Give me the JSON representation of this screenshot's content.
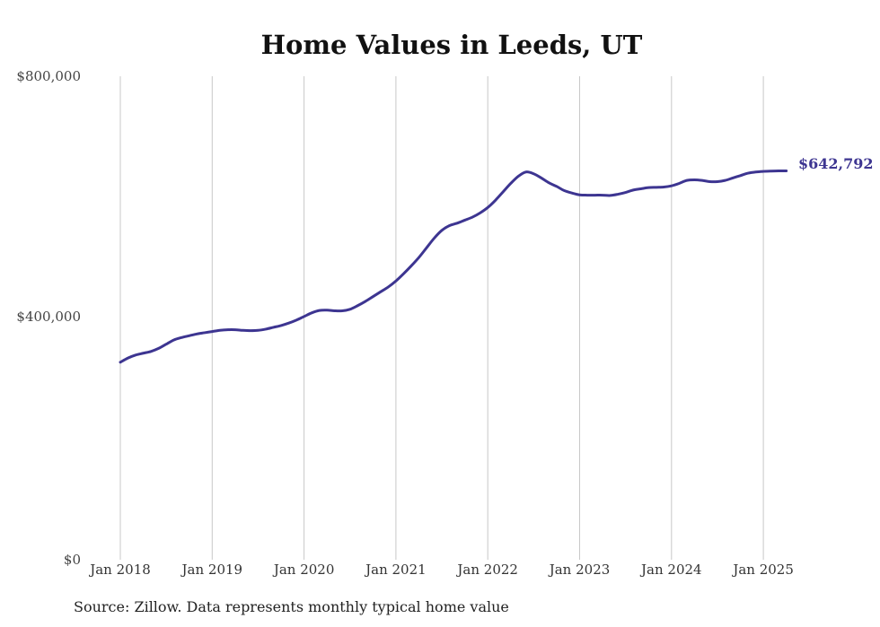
{
  "chart_data": {
    "type": "line",
    "title": "Home Values in Leeds, UT",
    "xlabel": "",
    "ylabel": "",
    "ylim": [
      0,
      800000
    ],
    "xlim": [
      "2018-01",
      "2025-04"
    ],
    "y_ticks": [
      "$0",
      "$400,000",
      "$800,000"
    ],
    "x_ticks": [
      "Jan 2018",
      "Jan 2019",
      "Jan 2020",
      "Jan 2021",
      "Jan 2022",
      "Jan 2023",
      "Jan 2024",
      "Jan 2025"
    ],
    "grid": "vertical",
    "line_color": "#3d3591",
    "end_label": "$642,792",
    "series": [
      {
        "values": [
          [
            "2018-01",
            325000
          ],
          [
            "2018-02",
            332000
          ],
          [
            "2018-03",
            337000
          ],
          [
            "2018-04",
            340000
          ],
          [
            "2018-05",
            343000
          ],
          [
            "2018-06",
            348000
          ],
          [
            "2018-07",
            355000
          ],
          [
            "2018-08",
            362000
          ],
          [
            "2018-09",
            366000
          ],
          [
            "2018-10",
            369000
          ],
          [
            "2018-11",
            372000
          ],
          [
            "2018-12",
            374000
          ],
          [
            "2019-01",
            376000
          ],
          [
            "2019-02",
            378000
          ],
          [
            "2019-03",
            379000
          ],
          [
            "2019-04",
            379000
          ],
          [
            "2019-05",
            378000
          ],
          [
            "2019-06",
            377500
          ],
          [
            "2019-07",
            378000
          ],
          [
            "2019-08",
            380000
          ],
          [
            "2019-09",
            383000
          ],
          [
            "2019-10",
            386000
          ],
          [
            "2019-11",
            390000
          ],
          [
            "2019-12",
            395000
          ],
          [
            "2020-01",
            401000
          ],
          [
            "2020-02",
            407000
          ],
          [
            "2020-03",
            411000
          ],
          [
            "2020-04",
            411500
          ],
          [
            "2020-05",
            410500
          ],
          [
            "2020-06",
            410500
          ],
          [
            "2020-07",
            413000
          ],
          [
            "2020-08",
            419000
          ],
          [
            "2020-09",
            426000
          ],
          [
            "2020-10",
            434000
          ],
          [
            "2020-11",
            442000
          ],
          [
            "2020-12",
            450000
          ],
          [
            "2021-01",
            460000
          ],
          [
            "2021-02",
            472000
          ],
          [
            "2021-03",
            485000
          ],
          [
            "2021-04",
            499000
          ],
          [
            "2021-05",
            515000
          ],
          [
            "2021-06",
            531000
          ],
          [
            "2021-07",
            544000
          ],
          [
            "2021-08",
            552000
          ],
          [
            "2021-09",
            556000
          ],
          [
            "2021-10",
            561000
          ],
          [
            "2021-11",
            566000
          ],
          [
            "2021-12",
            573000
          ],
          [
            "2022-01",
            582000
          ],
          [
            "2022-02",
            594000
          ],
          [
            "2022-03",
            608000
          ],
          [
            "2022-04",
            622000
          ],
          [
            "2022-05",
            634000
          ],
          [
            "2022-06",
            641000
          ],
          [
            "2022-07",
            638000
          ],
          [
            "2022-08",
            631000
          ],
          [
            "2022-09",
            623000
          ],
          [
            "2022-10",
            617000
          ],
          [
            "2022-11",
            610000
          ],
          [
            "2022-12",
            606000
          ],
          [
            "2023-01",
            603000
          ],
          [
            "2023-02",
            602500
          ],
          [
            "2023-03",
            602500
          ],
          [
            "2023-04",
            602500
          ],
          [
            "2023-05",
            602000
          ],
          [
            "2023-06",
            604000
          ],
          [
            "2023-07",
            607000
          ],
          [
            "2023-08",
            611000
          ],
          [
            "2023-09",
            613000
          ],
          [
            "2023-10",
            615000
          ],
          [
            "2023-11",
            615500
          ],
          [
            "2023-12",
            616000
          ],
          [
            "2024-01",
            618000
          ],
          [
            "2024-02",
            622000
          ],
          [
            "2024-03",
            627000
          ],
          [
            "2024-04",
            628000
          ],
          [
            "2024-05",
            627000
          ],
          [
            "2024-06",
            625000
          ],
          [
            "2024-07",
            625000
          ],
          [
            "2024-08",
            627000
          ],
          [
            "2024-09",
            631000
          ],
          [
            "2024-10",
            635000
          ],
          [
            "2024-11",
            639000
          ],
          [
            "2024-12",
            641000
          ],
          [
            "2025-01",
            642000
          ],
          [
            "2025-02",
            642500
          ],
          [
            "2025-03",
            642800
          ],
          [
            "2025-04",
            642792
          ]
        ]
      }
    ]
  },
  "source_note": "Source: Zillow. Data represents monthly typical home value"
}
